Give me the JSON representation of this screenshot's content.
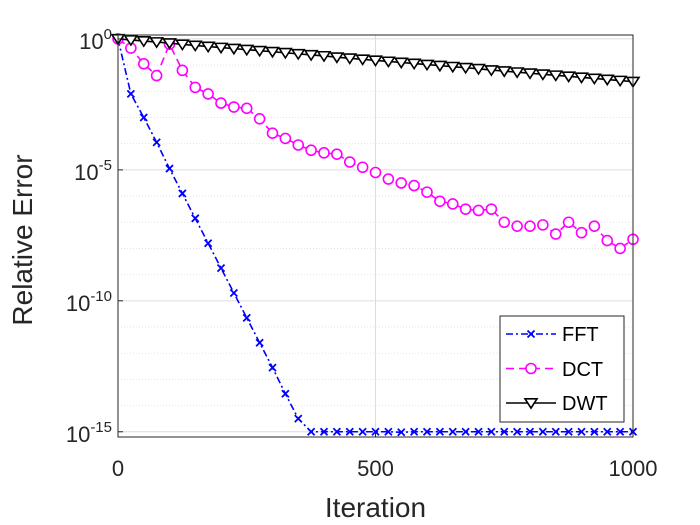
{
  "chart_data": {
    "type": "line",
    "title": "",
    "xlabel": "Iteration",
    "ylabel": "Relative Error",
    "xscale": "linear",
    "yscale": "log",
    "xlim": [
      0,
      1000
    ],
    "ylim_log10": [
      -15.2,
      0.15
    ],
    "x_ticks": [
      {
        "value": 0,
        "label": "0"
      },
      {
        "value": 500,
        "label": "500"
      },
      {
        "value": 1000,
        "label": "1000"
      }
    ],
    "y_ticks": [
      {
        "exp": 0,
        "base": "10",
        "sup": "0"
      },
      {
        "exp": -5,
        "base": "10",
        "sup": "-5"
      },
      {
        "exp": -10,
        "base": "10",
        "sup": "-10"
      },
      {
        "exp": -15,
        "base": "10",
        "sup": "-15"
      }
    ],
    "grid": true,
    "legend_position": "bottom-right",
    "series": [
      {
        "name": "FFT",
        "color": "#0000ff",
        "line_style": "dashdot",
        "marker": "x",
        "x": [
          0,
          25,
          50,
          75,
          100,
          125,
          150,
          175,
          200,
          225,
          250,
          275,
          300,
          325,
          350,
          375,
          400,
          425,
          450,
          475,
          500,
          525,
          550,
          575,
          600,
          625,
          650,
          675,
          700,
          725,
          750,
          775,
          800,
          825,
          850,
          875,
          900,
          925,
          950,
          975,
          1000
        ],
        "log10_y": [
          0,
          -2.1,
          -3.0,
          -3.95,
          -4.95,
          -5.9,
          -6.85,
          -7.8,
          -8.75,
          -9.7,
          -10.65,
          -11.6,
          -12.55,
          -13.55,
          -14.5,
          -15.0,
          -15.0,
          -15.0,
          -15.0,
          -15.0,
          -15.0,
          -15.0,
          -15.02,
          -15.0,
          -15.0,
          -15.0,
          -15.0,
          -15.0,
          -15.0,
          -15.0,
          -15.0,
          -15.0,
          -15.0,
          -15.0,
          -15.0,
          -15.0,
          -15.0,
          -15.0,
          -15.0,
          -15.0,
          -15.0
        ]
      },
      {
        "name": "DCT",
        "color": "#ff00ff",
        "line_style": "dashed",
        "marker": "o",
        "x": [
          0,
          25,
          50,
          75,
          100,
          125,
          150,
          175,
          200,
          225,
          250,
          275,
          300,
          325,
          350,
          375,
          400,
          425,
          450,
          475,
          500,
          525,
          550,
          575,
          600,
          625,
          650,
          675,
          700,
          725,
          750,
          775,
          800,
          825,
          850,
          875,
          900,
          925,
          950,
          975,
          1000
        ],
        "log10_y": [
          0,
          -0.35,
          -0.95,
          -1.4,
          -0.2,
          -1.2,
          -1.85,
          -2.1,
          -2.45,
          -2.6,
          -2.65,
          -3.05,
          -3.6,
          -3.8,
          -4.05,
          -4.25,
          -4.35,
          -4.4,
          -4.7,
          -4.9,
          -5.1,
          -5.35,
          -5.5,
          -5.6,
          -5.85,
          -6.2,
          -6.3,
          -6.5,
          -6.55,
          -6.5,
          -7.0,
          -7.15,
          -7.15,
          -7.1,
          -7.45,
          -7.0,
          -7.4,
          -7.15,
          -7.7,
          -8.0,
          -7.65
        ]
      },
      {
        "name": "DWT",
        "color": "#000000",
        "line_style": "solid",
        "marker": "triangle-down",
        "x": [
          0,
          25,
          50,
          75,
          100,
          125,
          150,
          175,
          200,
          225,
          250,
          275,
          300,
          325,
          350,
          375,
          400,
          425,
          450,
          475,
          500,
          525,
          550,
          575,
          600,
          625,
          650,
          675,
          700,
          725,
          750,
          775,
          800,
          825,
          850,
          875,
          900,
          925,
          950,
          975,
          1000
        ],
        "log10_y": [
          0,
          -0.04,
          -0.08,
          -0.12,
          -0.16,
          -0.21,
          -0.25,
          -0.29,
          -0.33,
          -0.37,
          -0.41,
          -0.45,
          -0.49,
          -0.53,
          -0.57,
          -0.61,
          -0.65,
          -0.7,
          -0.74,
          -0.78,
          -0.82,
          -0.86,
          -0.9,
          -0.94,
          -0.98,
          -1.02,
          -1.06,
          -1.1,
          -1.14,
          -1.19,
          -1.23,
          -1.27,
          -1.31,
          -1.35,
          -1.39,
          -1.43,
          -1.47,
          -1.51,
          -1.55,
          -1.59,
          -1.63
        ]
      }
    ]
  }
}
